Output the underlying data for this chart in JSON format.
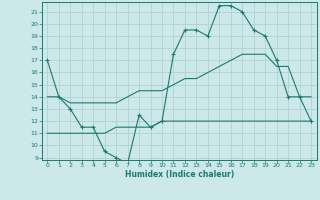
{
  "xlabel": "Humidex (Indice chaleur)",
  "x": [
    0,
    1,
    2,
    3,
    4,
    5,
    6,
    7,
    8,
    9,
    10,
    11,
    12,
    13,
    14,
    15,
    16,
    17,
    18,
    19,
    20,
    21,
    22,
    23
  ],
  "line1": [
    17,
    14,
    13,
    11.5,
    11.5,
    9.5,
    9,
    8.5,
    12.5,
    11.5,
    12,
    17.5,
    19.5,
    19.5,
    19,
    21.5,
    21.5,
    21,
    19.5,
    19,
    17,
    14,
    14,
    12
  ],
  "line2": [
    14,
    14,
    13.5,
    13.5,
    13.5,
    13.5,
    13.5,
    14,
    14.5,
    14.5,
    14.5,
    15,
    15.5,
    15.5,
    16,
    16.5,
    17,
    17.5,
    17.5,
    17.5,
    16.5,
    16.5,
    14,
    14
  ],
  "line3": [
    11,
    11,
    11,
    11,
    11,
    11,
    11.5,
    11.5,
    11.5,
    11.5,
    12,
    12,
    12,
    12,
    12,
    12,
    12,
    12,
    12,
    12,
    12,
    12,
    12,
    12
  ],
  "line_color": "#1a7a6e",
  "bg_color": "#cce8e8",
  "grid_color": "#aacece",
  "ylim": [
    8.8,
    21.8
  ],
  "yticks": [
    9,
    10,
    11,
    12,
    13,
    14,
    15,
    16,
    17,
    18,
    19,
    20,
    21
  ],
  "xticks": [
    0,
    1,
    2,
    3,
    4,
    5,
    6,
    7,
    8,
    9,
    10,
    11,
    12,
    13,
    14,
    15,
    16,
    17,
    18,
    19,
    20,
    21,
    22,
    23
  ]
}
